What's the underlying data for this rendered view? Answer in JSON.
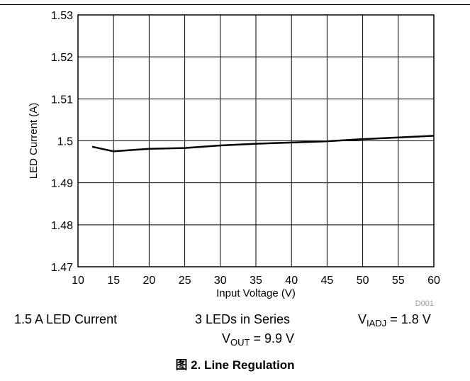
{
  "chart_data": {
    "type": "line",
    "xlabel": "Input Voltage (V)",
    "ylabel": "LED Current (A)",
    "xlim": [
      10,
      60
    ],
    "ylim": [
      1.47,
      1.53
    ],
    "xticks": [
      10,
      15,
      20,
      25,
      30,
      35,
      40,
      45,
      50,
      55,
      60
    ],
    "yticks": [
      1.47,
      1.48,
      1.49,
      1.5,
      1.51,
      1.52,
      1.53
    ],
    "ytick_labels": [
      "1.47",
      "1.48",
      "1.49",
      "1.5",
      "1.51",
      "1.52",
      "1.53"
    ],
    "grid": true,
    "series": [
      {
        "color": "#000000",
        "x": [
          12,
          15,
          20,
          25,
          30,
          35,
          40,
          45,
          50,
          55,
          60
        ],
        "y": [
          1.4986,
          1.4975,
          1.4981,
          1.4983,
          1.4989,
          1.4993,
          1.4996,
          1.4999,
          1.5004,
          1.5008,
          1.5012
        ]
      }
    ],
    "plot_id": "D001"
  },
  "conditions": {
    "led_current": "1.5 A LED Current",
    "leds_in_series": "3 LEDs in Series",
    "vout": {
      "symbol": "V",
      "subscript": "OUT",
      "value": " = 9.9 V"
    },
    "viadj": {
      "symbol": "V",
      "subscript": "IADJ",
      "value": " = 1.8 V"
    }
  },
  "caption": "图 2. Line Regulation"
}
